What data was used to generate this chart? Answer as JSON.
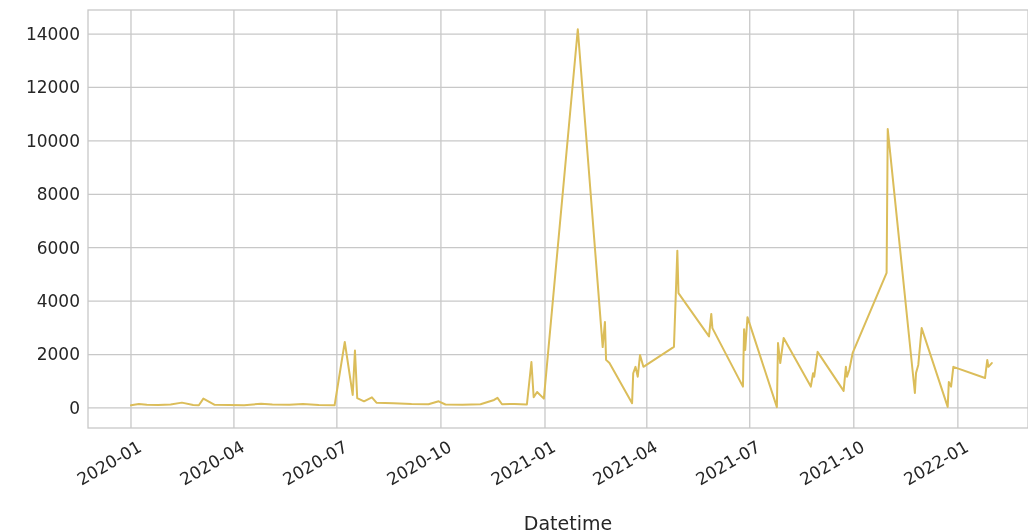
{
  "chart_data": {
    "type": "line",
    "xlabel": "Datetime",
    "color": "#dbbd5a",
    "grid": true,
    "line_style": "solid",
    "marker": "none",
    "xlim": [
      "2019-11-24",
      "2022-03-04"
    ],
    "xticks": [
      "2020-01",
      "2020-04",
      "2020-07",
      "2020-10",
      "2021-01",
      "2021-04",
      "2021-07",
      "2021-10",
      "2022-01"
    ],
    "ylim": [
      -750,
      14900
    ],
    "yticks": [
      0,
      2000,
      4000,
      6000,
      8000,
      10000,
      12000,
      14000
    ],
    "x": [
      "2020-01-01",
      "2020-01-08",
      "2020-01-15",
      "2020-01-25",
      "2020-02-05",
      "2020-02-15",
      "2020-02-25",
      "2020-03-01",
      "2020-03-05",
      "2020-03-15",
      "2020-03-28",
      "2020-04-10",
      "2020-04-25",
      "2020-05-05",
      "2020-05-20",
      "2020-06-01",
      "2020-06-15",
      "2020-06-29",
      "2020-07-08",
      "2020-07-15",
      "2020-07-17",
      "2020-07-19",
      "2020-07-25",
      "2020-08-01",
      "2020-08-05",
      "2020-08-20",
      "2020-09-05",
      "2020-09-20",
      "2020-09-29",
      "2020-10-05",
      "2020-10-20",
      "2020-11-05",
      "2020-11-17",
      "2020-11-20",
      "2020-11-24",
      "2020-12-05",
      "2020-12-16",
      "2020-12-20",
      "2020-12-22",
      "2020-12-25",
      "2020-12-31",
      "2021-01-30",
      "2021-02-21",
      "2021-02-23",
      "2021-02-24",
      "2021-02-27",
      "2021-03-19",
      "2021-03-20",
      "2021-03-22",
      "2021-03-24",
      "2021-03-26",
      "2021-03-29",
      "2021-04-25",
      "2021-04-28",
      "2021-04-29",
      "2021-05-26",
      "2021-05-28",
      "2021-05-29",
      "2021-06-25",
      "2021-06-26",
      "2021-06-27",
      "2021-06-29",
      "2021-07-25",
      "2021-07-26",
      "2021-07-28",
      "2021-07-31",
      "2021-08-24",
      "2021-08-26",
      "2021-08-27",
      "2021-08-30",
      "2021-09-22",
      "2021-09-24",
      "2021-09-25",
      "2021-09-27",
      "2021-09-30",
      "2021-10-30",
      "2021-10-31",
      "2021-11-24",
      "2021-11-25",
      "2021-11-27",
      "2021-11-30",
      "2021-12-23",
      "2021-12-24",
      "2021-12-26",
      "2021-12-28",
      "2022-01-25",
      "2022-01-27",
      "2022-01-28",
      "2022-01-31"
    ],
    "values": [
      100,
      150,
      120,
      110,
      130,
      200,
      110,
      100,
      350,
      120,
      110,
      100,
      160,
      130,
      120,
      150,
      110,
      100,
      2470,
      490,
      2150,
      370,
      250,
      400,
      200,
      180,
      150,
      140,
      250,
      130,
      120,
      140,
      300,
      380,
      140,
      150,
      130,
      1720,
      400,
      600,
      350,
      14180,
      2280,
      3220,
      1800,
      1680,
      180,
      1300,
      1540,
      1170,
      1980,
      1540,
      2290,
      5890,
      4300,
      2680,
      3520,
      2990,
      800,
      2950,
      2170,
      3400,
      30,
      2430,
      1680,
      2620,
      800,
      1300,
      1170,
      2100,
      640,
      1540,
      1170,
      1420,
      2060,
      5060,
      10440,
      560,
      1310,
      1610,
      2990,
      40,
      970,
      800,
      1540,
      1120,
      1800,
      1540,
      1680
    ]
  }
}
